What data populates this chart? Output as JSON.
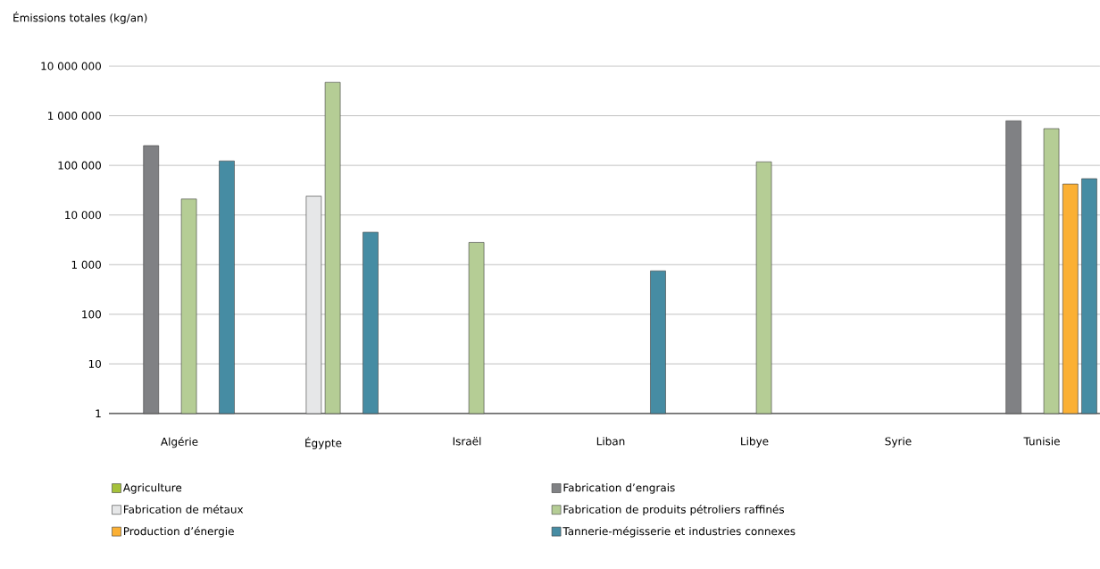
{
  "chart_data": {
    "type": "bar",
    "ylabel": "Émissions totales (kg/an)",
    "categories": [
      "Algérie",
      "Égypte",
      "Israël",
      "Liban",
      "Libye",
      "Syrie",
      "Tunisie"
    ],
    "series": [
      {
        "name": "Agriculture",
        "color": "#a5c13a",
        "values": [
          null,
          null,
          null,
          null,
          null,
          null,
          null
        ]
      },
      {
        "name": "Fabrication d’engrais",
        "color": "#808184",
        "values": [
          250000,
          null,
          null,
          null,
          null,
          null,
          790000
        ]
      },
      {
        "name": "Fabrication de métaux",
        "color": "#e6e7e8",
        "values": [
          null,
          24000,
          null,
          null,
          null,
          null,
          null
        ]
      },
      {
        "name": "Fabrication de produits pétroliers raffinés",
        "color": "#b5cd95",
        "values": [
          21000,
          4700000,
          2800,
          null,
          118000,
          null,
          550000
        ]
      },
      {
        "name": "Production d’énergie",
        "color": "#fbb034",
        "values": [
          null,
          null,
          null,
          null,
          null,
          null,
          42000
        ]
      },
      {
        "name": "Tannerie-mégisserie et industries connexes",
        "color": "#468ca3",
        "values": [
          123000,
          4500,
          null,
          750,
          null,
          null,
          54000
        ]
      }
    ],
    "log": "y",
    "ylim": [
      1,
      10000000
    ],
    "yticks": [
      1,
      10,
      100,
      {
        "value": 1000,
        "label": "1 000"
      },
      {
        "value": 10000,
        "label": "10 000"
      },
      {
        "value": 100000,
        "label": "100 000"
      },
      {
        "value": 1000000,
        "label": "1 000 000"
      },
      {
        "value": 10000000,
        "label": "10 000 000"
      }
    ],
    "grid": "y",
    "legend": "bottom"
  }
}
